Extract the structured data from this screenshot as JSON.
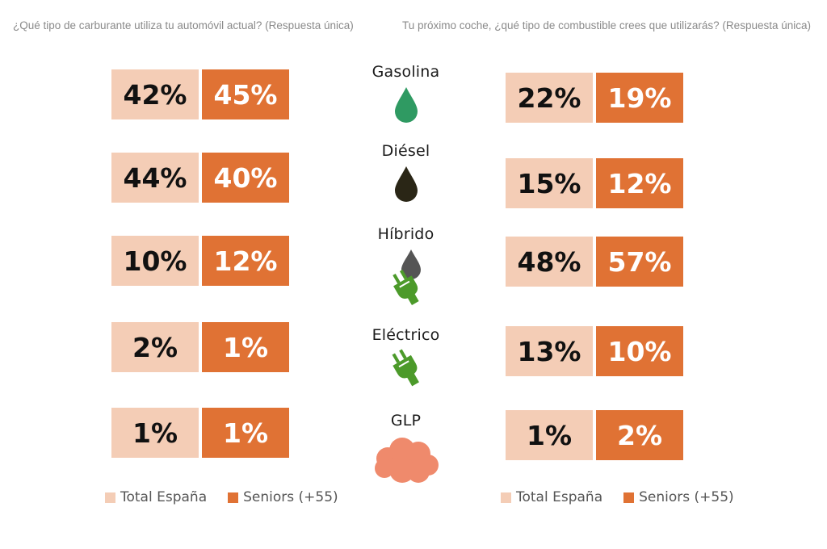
{
  "questions": {
    "left": "¿Qué tipo de carburante utiliza tu automóvil actual? (Respuesta única)",
    "right": "Tu próximo coche, ¿qué tipo de combustible crees que utilizarás? (Respuesta única)"
  },
  "legend": {
    "total": "Total España",
    "seniors": "Seniors (+55)"
  },
  "colors": {
    "total": "#f4cdb6",
    "seniors": "#e07234",
    "gasolina_icon": "#2f9a62",
    "diesel_icon": "#2a2616",
    "hibrido_icon": "#555555",
    "plug_icon": "#4c9a2a",
    "glp_icon": "#ef8a6c"
  },
  "chart_data": [
    {
      "type": "table",
      "title": "¿Qué tipo de carburante utiliza tu automóvil actual? (Respuesta única)",
      "categories": [
        "Gasolina",
        "Diésel",
        "Híbrido",
        "Eléctrico",
        "GLP"
      ],
      "series": [
        {
          "name": "Total España",
          "values": [
            42,
            44,
            10,
            2,
            1
          ]
        },
        {
          "name": "Seniors (+55)",
          "values": [
            45,
            40,
            12,
            1,
            1
          ]
        }
      ]
    },
    {
      "type": "table",
      "title": "Tu próximo coche, ¿qué tipo de combustible crees que utilizarás? (Respuesta única)",
      "categories": [
        "Gasolina",
        "Diésel",
        "Híbrido",
        "Eléctrico",
        "GLP"
      ],
      "series": [
        {
          "name": "Total España",
          "values": [
            22,
            15,
            48,
            13,
            1
          ]
        },
        {
          "name": "Seniors (+55)",
          "values": [
            19,
            12,
            57,
            10,
            2
          ]
        }
      ]
    }
  ],
  "labels": {
    "left": [
      {
        "total": "42%",
        "seniors": "45%"
      },
      {
        "total": "44%",
        "seniors": "40%"
      },
      {
        "total": "10%",
        "seniors": "12%"
      },
      {
        "total": "2%",
        "seniors": "1%"
      },
      {
        "total": "1%",
        "seniors": "1%"
      }
    ],
    "right": [
      {
        "total": "22%",
        "seniors": "19%"
      },
      {
        "total": "15%",
        "seniors": "12%"
      },
      {
        "total": "48%",
        "seniors": "57%"
      },
      {
        "total": "13%",
        "seniors": "10%"
      },
      {
        "total": "1%",
        "seniors": "2%"
      }
    ]
  },
  "fuels": [
    {
      "label": "Gasolina",
      "icon": "fuel-drop-icon"
    },
    {
      "label": "Diésel",
      "icon": "fuel-drop-icon"
    },
    {
      "label": "Híbrido",
      "icon": "drop-and-plug-icon"
    },
    {
      "label": "Eléctrico",
      "icon": "plug-icon"
    },
    {
      "label": "GLP",
      "icon": "gas-cloud-icon"
    }
  ]
}
